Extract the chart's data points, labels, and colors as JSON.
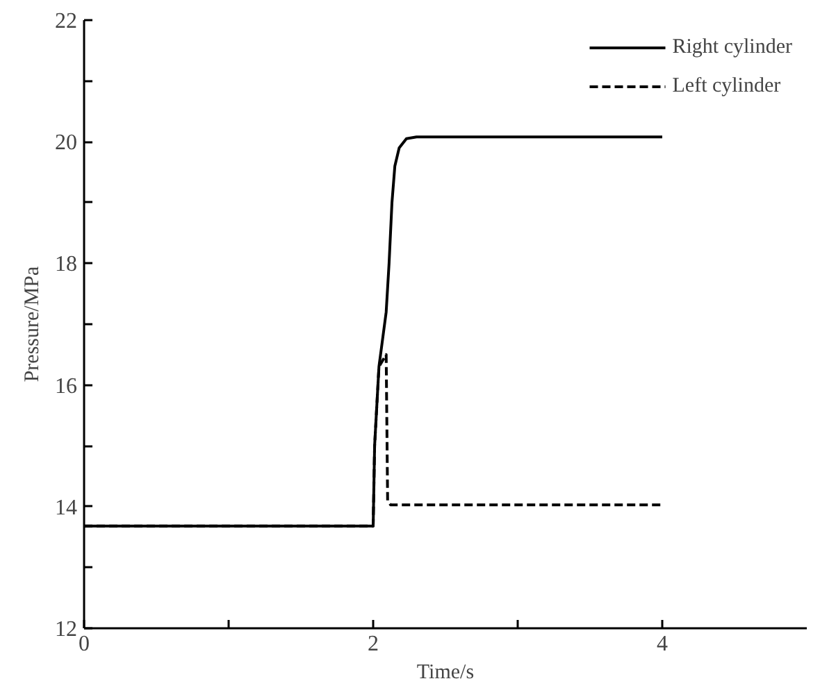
{
  "chart_data": {
    "type": "line",
    "xlabel": "Time/s",
    "ylabel": "Pressure/MPa",
    "xlim": [
      0,
      5
    ],
    "ylim": [
      12,
      22
    ],
    "xticks": [
      0,
      {
        "value": 1,
        "label": null
      },
      2,
      {
        "value": 3,
        "label": null
      },
      4
    ],
    "yticks": [
      12,
      {
        "value": 13,
        "label": null
      },
      14,
      {
        "value": 15,
        "label": null
      },
      16,
      {
        "value": 17,
        "label": null
      },
      18,
      {
        "value": 19,
        "label": null
      },
      20,
      {
        "value": 21,
        "label": null
      },
      22
    ],
    "grid": false,
    "legend": "top right",
    "marker": "none",
    "series": [
      {
        "name": "Right cylinder",
        "color": "#000000",
        "line_style": "solid",
        "x": [
          0,
          2.0,
          2.01,
          2.04,
          2.09,
          2.11,
          2.13,
          2.15,
          2.18,
          2.23,
          2.3,
          4
        ],
        "values": [
          13.68,
          13.68,
          15.0,
          16.3,
          17.2,
          18.0,
          19.0,
          19.6,
          19.9,
          20.05,
          20.08,
          20.08
        ]
      },
      {
        "name": "Left cylinder",
        "color": "#000000",
        "line_style": "dashed",
        "x": [
          0,
          2.0,
          2.01,
          2.04,
          2.09,
          2.1,
          2.12,
          4
        ],
        "values": [
          13.68,
          13.68,
          15.0,
          16.3,
          16.5,
          14.1,
          14.03,
          14.03
        ]
      }
    ]
  }
}
